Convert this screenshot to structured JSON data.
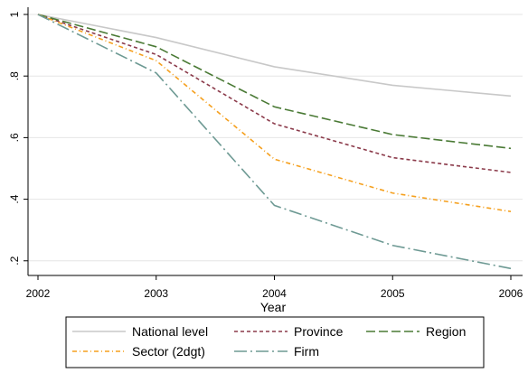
{
  "chart_data": {
    "type": "line",
    "title": "",
    "xlabel": "Year",
    "ylabel": "",
    "x": [
      2002,
      2003,
      2004,
      2005,
      2006
    ],
    "x_tick_labels": [
      "2002",
      "2003",
      "2004",
      "2005",
      "2006"
    ],
    "ylim": [
      0.17,
      1.0
    ],
    "y_ticks": [
      0.2,
      0.4,
      0.6,
      0.8,
      1.0
    ],
    "y_tick_labels": [
      ".2",
      ".4",
      ".6",
      ".8",
      "1"
    ],
    "grid": "horizontal",
    "legend_position": "bottom",
    "series": [
      {
        "name": "National level",
        "color": "#c8c8c8",
        "dash": "solid",
        "values": [
          1.0,
          0.925,
          0.83,
          0.77,
          0.735
        ]
      },
      {
        "name": "Province",
        "color": "#8b3a4a",
        "dash": "dash",
        "values": [
          1.0,
          0.87,
          0.645,
          0.535,
          0.487
        ]
      },
      {
        "name": "Region",
        "color": "#4a7a35",
        "dash": "longdash",
        "values": [
          1.0,
          0.895,
          0.7,
          0.61,
          0.565
        ]
      },
      {
        "name": "Sector (2dgt)",
        "color": "#f5a01e",
        "dash": "dashdot",
        "values": [
          1.0,
          0.85,
          0.53,
          0.42,
          0.36
        ]
      },
      {
        "name": "Firm",
        "color": "#6e9a94",
        "dash": "longdashdot",
        "values": [
          1.0,
          0.81,
          0.38,
          0.25,
          0.175
        ]
      }
    ]
  }
}
